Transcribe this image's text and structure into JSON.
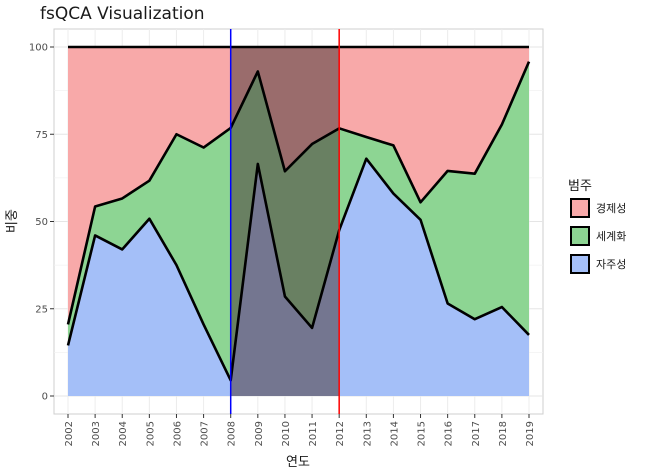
{
  "chart_data": {
    "type": "area",
    "title": "fsQCA Visualization",
    "xlabel": "연도",
    "ylabel": "비중",
    "ylim": [
      0,
      100
    ],
    "yticks": [
      0,
      25,
      50,
      75,
      100
    ],
    "x": [
      2002,
      2003,
      2004,
      2005,
      2006,
      2007,
      2008,
      2009,
      2010,
      2011,
      2012,
      2013,
      2014,
      2015,
      2016,
      2017,
      2018,
      2019
    ],
    "stacked": true,
    "series": [
      {
        "name": "자주성",
        "color": "#a4bff8",
        "values": [
          14.5,
          46,
          42,
          50.8,
          37.5,
          20.5,
          4.5,
          66.5,
          28.5,
          19.5,
          47.5,
          68,
          58,
          50.5,
          26.5,
          22,
          25.5,
          17.5
        ]
      },
      {
        "name": "세계화",
        "color": "#8dd593",
        "values": [
          6,
          8.3,
          14.6,
          10.9,
          37.5,
          50.7,
          72.3,
          26.5,
          35.9,
          52.7,
          29.2,
          6.2,
          13.8,
          5,
          38,
          41.7,
          52.3,
          78.3
        ]
      },
      {
        "name": "경제성",
        "color": "#f8a9a9",
        "values": [
          79.5,
          45.7,
          43.4,
          38.3,
          25,
          28.8,
          23.2,
          7,
          35.6,
          27.8,
          23.3,
          25.8,
          28.2,
          44.5,
          35.5,
          36.3,
          22.2,
          4.2
        ]
      }
    ],
    "legend": {
      "title": "범주",
      "position": "right",
      "order": [
        "경제성",
        "세계화",
        "자주성"
      ]
    },
    "vlines": [
      {
        "x": 2008,
        "color": "#0000ff"
      },
      {
        "x": 2012,
        "color": "#ff0000"
      }
    ],
    "shaded_range": {
      "x": [
        2008,
        2012
      ],
      "color": "#4d3a3a",
      "opacity": 0.55
    },
    "grid": true
  }
}
